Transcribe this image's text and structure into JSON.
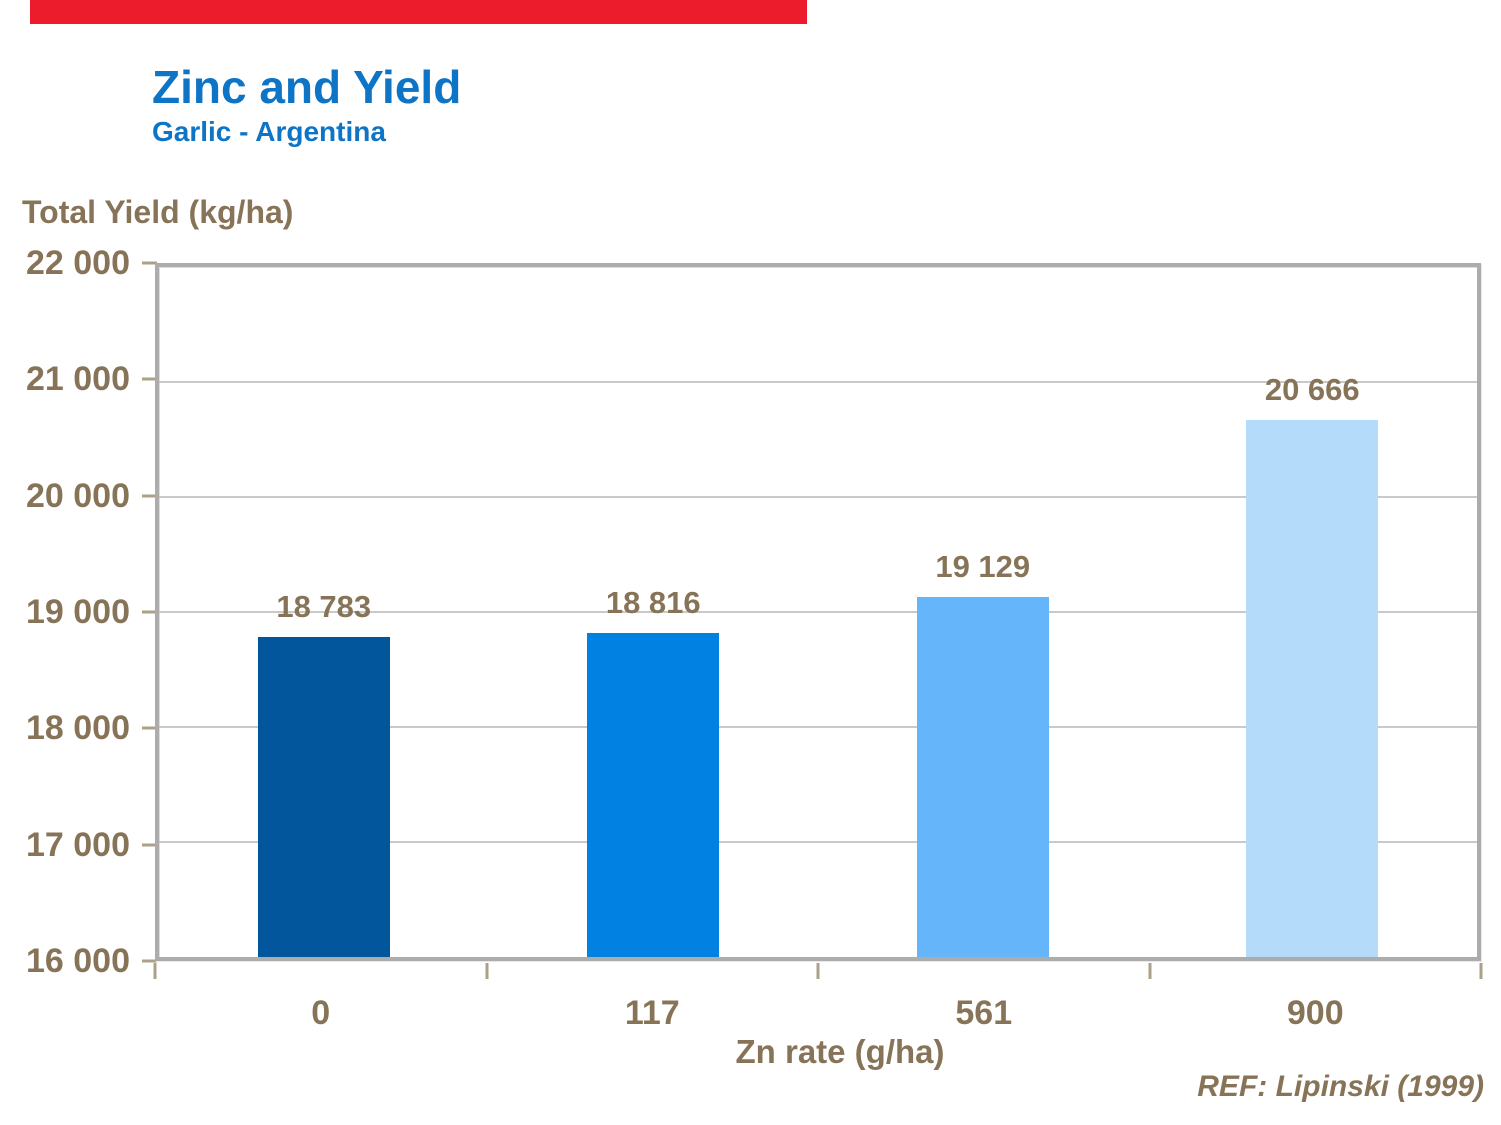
{
  "accent_bar": {
    "color": "#EC1C2D"
  },
  "header": {
    "title": "Zinc and Yield",
    "subtitle": "Garlic - Argentina",
    "color": "#0E74C6"
  },
  "chart_data": {
    "type": "bar",
    "title": "Zinc and Yield",
    "subtitle": "Garlic - Argentina",
    "categories": [
      "0",
      "117",
      "561",
      "900"
    ],
    "values": [
      18783,
      18816,
      19129,
      20666
    ],
    "value_labels": [
      "18 783",
      "18 816",
      "19 129",
      "20 666"
    ],
    "bar_colors": [
      "#02569B",
      "#0181E2",
      "#64B5F9",
      "#B4DBF9"
    ],
    "xlabel": "Zn rate (g/ha)",
    "ylabel": "Total Yield (kg/ha)",
    "ylim": [
      16000,
      22000
    ],
    "ytick_values": [
      16000,
      17000,
      18000,
      19000,
      20000,
      21000,
      22000
    ],
    "ytick_labels": [
      "16 000",
      "17 000",
      "18 000",
      "19 000",
      "20 000",
      "21 000",
      "22 000"
    ],
    "grid": "horizontal",
    "legend": "none"
  },
  "footer": {
    "reference": "REF: Lipinski (1999)"
  },
  "colors": {
    "text_brown": "#877458",
    "grid": "#C9C9C9",
    "tick": "#ACA08A"
  }
}
